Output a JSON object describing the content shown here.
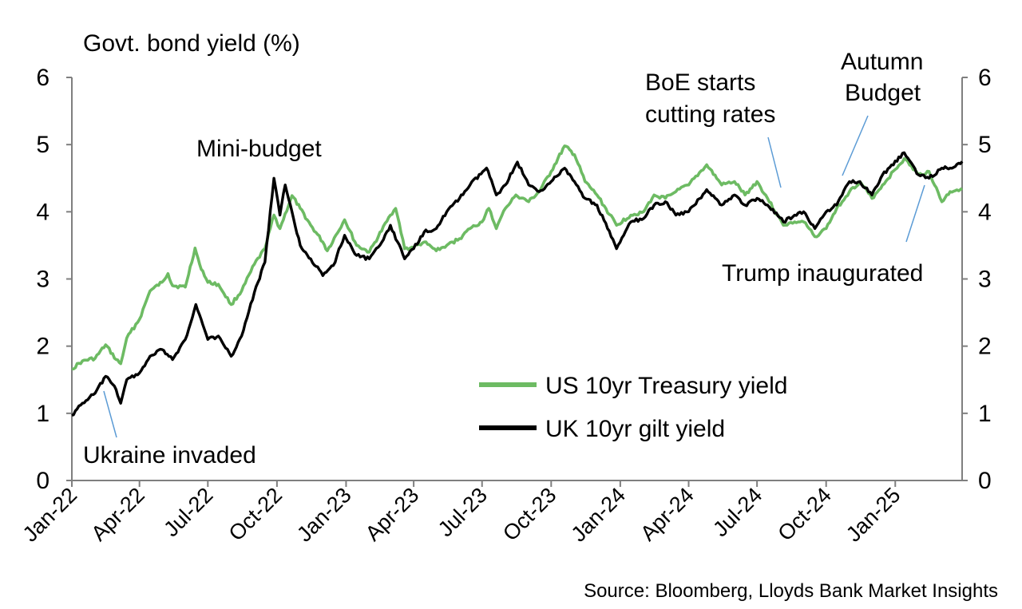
{
  "chart_data": {
    "type": "line",
    "ylabel": "Govt. bond yield (%)",
    "ylim": [
      0,
      6
    ],
    "y_ticks": [
      "0",
      "1",
      "2",
      "3",
      "4",
      "5",
      "6"
    ],
    "y2_ticks": [
      "0",
      "1",
      "2",
      "3",
      "4",
      "5",
      "6"
    ],
    "x_range": [
      "2022-01-01",
      "2025-03-31"
    ],
    "x_ticks": [
      {
        "date": "2022-01-01",
        "label": "Jan-22"
      },
      {
        "date": "2022-04-01",
        "label": "Apr-22"
      },
      {
        "date": "2022-07-01",
        "label": "Jul-22"
      },
      {
        "date": "2022-10-01",
        "label": "Oct-22"
      },
      {
        "date": "2023-01-01",
        "label": "Jan-23"
      },
      {
        "date": "2023-04-01",
        "label": "Apr-23"
      },
      {
        "date": "2023-07-01",
        "label": "Jul-23"
      },
      {
        "date": "2023-10-01",
        "label": "Oct-23"
      },
      {
        "date": "2024-01-01",
        "label": "Jan-24"
      },
      {
        "date": "2024-04-01",
        "label": "Apr-24"
      },
      {
        "date": "2024-07-01",
        "label": "Jul-24"
      },
      {
        "date": "2024-10-01",
        "label": "Oct-24"
      },
      {
        "date": "2025-01-01",
        "label": "Jan-25"
      }
    ],
    "grid": false,
    "legend_position": "center-right",
    "series": [
      {
        "name": "US 10yr Treasury yield",
        "color": "#6dbb63",
        "points": [
          [
            "2022-01-01",
            1.66
          ],
          [
            "2022-01-15",
            1.78
          ],
          [
            "2022-02-01",
            1.82
          ],
          [
            "2022-02-15",
            2.02
          ],
          [
            "2022-03-01",
            1.8
          ],
          [
            "2022-03-07",
            1.74
          ],
          [
            "2022-03-15",
            2.12
          ],
          [
            "2022-04-01",
            2.4
          ],
          [
            "2022-04-15",
            2.82
          ],
          [
            "2022-05-01",
            2.95
          ],
          [
            "2022-05-09",
            3.08
          ],
          [
            "2022-05-15",
            2.9
          ],
          [
            "2022-06-01",
            2.88
          ],
          [
            "2022-06-14",
            3.46
          ],
          [
            "2022-06-20",
            3.22
          ],
          [
            "2022-07-01",
            2.95
          ],
          [
            "2022-07-15",
            2.92
          ],
          [
            "2022-08-01",
            2.62
          ],
          [
            "2022-08-15",
            2.82
          ],
          [
            "2022-09-01",
            3.22
          ],
          [
            "2022-09-15",
            3.45
          ],
          [
            "2022-09-27",
            3.95
          ],
          [
            "2022-10-05",
            3.75
          ],
          [
            "2022-10-21",
            4.24
          ],
          [
            "2022-11-01",
            4.05
          ],
          [
            "2022-11-15",
            3.8
          ],
          [
            "2022-12-01",
            3.55
          ],
          [
            "2022-12-07",
            3.42
          ],
          [
            "2022-12-30",
            3.88
          ],
          [
            "2023-01-15",
            3.5
          ],
          [
            "2023-02-01",
            3.4
          ],
          [
            "2023-03-01",
            3.95
          ],
          [
            "2023-03-08",
            4.05
          ],
          [
            "2023-03-20",
            3.45
          ],
          [
            "2023-04-01",
            3.47
          ],
          [
            "2023-04-15",
            3.55
          ],
          [
            "2023-05-01",
            3.42
          ],
          [
            "2023-05-15",
            3.5
          ],
          [
            "2023-06-01",
            3.6
          ],
          [
            "2023-06-15",
            3.75
          ],
          [
            "2023-07-01",
            3.85
          ],
          [
            "2023-07-10",
            4.05
          ],
          [
            "2023-07-20",
            3.75
          ],
          [
            "2023-08-01",
            4.05
          ],
          [
            "2023-08-15",
            4.25
          ],
          [
            "2023-09-01",
            4.15
          ],
          [
            "2023-09-15",
            4.3
          ],
          [
            "2023-10-01",
            4.6
          ],
          [
            "2023-10-19",
            4.98
          ],
          [
            "2023-11-01",
            4.85
          ],
          [
            "2023-11-15",
            4.45
          ],
          [
            "2023-12-01",
            4.25
          ],
          [
            "2023-12-27",
            3.8
          ],
          [
            "2024-01-15",
            3.95
          ],
          [
            "2024-02-01",
            4.0
          ],
          [
            "2024-02-15",
            4.25
          ],
          [
            "2024-03-01",
            4.2
          ],
          [
            "2024-03-15",
            4.3
          ],
          [
            "2024-04-01",
            4.4
          ],
          [
            "2024-04-25",
            4.7
          ],
          [
            "2024-05-15",
            4.4
          ],
          [
            "2024-06-01",
            4.45
          ],
          [
            "2024-06-15",
            4.25
          ],
          [
            "2024-07-01",
            4.45
          ],
          [
            "2024-07-15",
            4.2
          ],
          [
            "2024-08-05",
            3.8
          ],
          [
            "2024-08-20",
            3.85
          ],
          [
            "2024-09-01",
            3.85
          ],
          [
            "2024-09-16",
            3.63
          ],
          [
            "2024-10-01",
            3.75
          ],
          [
            "2024-10-15",
            4.05
          ],
          [
            "2024-11-01",
            4.3
          ],
          [
            "2024-11-15",
            4.45
          ],
          [
            "2024-12-01",
            4.2
          ],
          [
            "2024-12-15",
            4.4
          ],
          [
            "2025-01-13",
            4.79
          ],
          [
            "2025-02-01",
            4.55
          ],
          [
            "2025-02-15",
            4.6
          ],
          [
            "2025-03-04",
            4.15
          ],
          [
            "2025-03-15",
            4.3
          ],
          [
            "2025-03-31",
            4.35
          ]
        ]
      },
      {
        "name": "UK 10yr gilt yield",
        "color": "#000000",
        "points": [
          [
            "2022-01-01",
            0.97
          ],
          [
            "2022-01-15",
            1.15
          ],
          [
            "2022-02-01",
            1.3
          ],
          [
            "2022-02-15",
            1.55
          ],
          [
            "2022-03-01",
            1.35
          ],
          [
            "2022-03-07",
            1.15
          ],
          [
            "2022-03-15",
            1.5
          ],
          [
            "2022-04-01",
            1.6
          ],
          [
            "2022-04-15",
            1.85
          ],
          [
            "2022-05-01",
            1.95
          ],
          [
            "2022-05-15",
            1.8
          ],
          [
            "2022-06-01",
            2.1
          ],
          [
            "2022-06-15",
            2.62
          ],
          [
            "2022-07-01",
            2.1
          ],
          [
            "2022-07-15",
            2.15
          ],
          [
            "2022-08-01",
            1.85
          ],
          [
            "2022-08-15",
            2.15
          ],
          [
            "2022-09-01",
            2.8
          ],
          [
            "2022-09-15",
            3.25
          ],
          [
            "2022-09-27",
            4.5
          ],
          [
            "2022-10-05",
            3.95
          ],
          [
            "2022-10-12",
            4.4
          ],
          [
            "2022-10-21",
            4.0
          ],
          [
            "2022-11-01",
            3.5
          ],
          [
            "2022-11-15",
            3.3
          ],
          [
            "2022-12-01",
            3.05
          ],
          [
            "2022-12-15",
            3.2
          ],
          [
            "2022-12-30",
            3.65
          ],
          [
            "2023-01-15",
            3.35
          ],
          [
            "2023-02-01",
            3.3
          ],
          [
            "2023-02-15",
            3.5
          ],
          [
            "2023-03-01",
            3.8
          ],
          [
            "2023-03-20",
            3.3
          ],
          [
            "2023-04-01",
            3.45
          ],
          [
            "2023-04-15",
            3.7
          ],
          [
            "2023-05-01",
            3.75
          ],
          [
            "2023-05-15",
            4.0
          ],
          [
            "2023-06-01",
            4.2
          ],
          [
            "2023-06-15",
            4.4
          ],
          [
            "2023-07-07",
            4.65
          ],
          [
            "2023-07-20",
            4.25
          ],
          [
            "2023-08-01",
            4.4
          ],
          [
            "2023-08-17",
            4.74
          ],
          [
            "2023-09-01",
            4.4
          ],
          [
            "2023-09-15",
            4.3
          ],
          [
            "2023-10-01",
            4.45
          ],
          [
            "2023-10-19",
            4.65
          ],
          [
            "2023-11-01",
            4.45
          ],
          [
            "2023-11-15",
            4.2
          ],
          [
            "2023-12-01",
            4.1
          ],
          [
            "2023-12-15",
            3.75
          ],
          [
            "2023-12-27",
            3.45
          ],
          [
            "2024-01-15",
            3.85
          ],
          [
            "2024-02-01",
            3.9
          ],
          [
            "2024-02-15",
            4.1
          ],
          [
            "2024-03-01",
            4.15
          ],
          [
            "2024-03-15",
            3.95
          ],
          [
            "2024-04-01",
            4.0
          ],
          [
            "2024-04-25",
            4.33
          ],
          [
            "2024-05-15",
            4.1
          ],
          [
            "2024-06-01",
            4.25
          ],
          [
            "2024-06-15",
            4.1
          ],
          [
            "2024-07-01",
            4.2
          ],
          [
            "2024-07-15",
            4.1
          ],
          [
            "2024-08-05",
            3.85
          ],
          [
            "2024-08-20",
            3.95
          ],
          [
            "2024-09-01",
            4.0
          ],
          [
            "2024-09-16",
            3.75
          ],
          [
            "2024-10-01",
            4.0
          ],
          [
            "2024-10-15",
            4.1
          ],
          [
            "2024-11-01",
            4.45
          ],
          [
            "2024-11-15",
            4.45
          ],
          [
            "2024-12-01",
            4.25
          ],
          [
            "2024-12-15",
            4.55
          ],
          [
            "2025-01-13",
            4.88
          ],
          [
            "2025-02-01",
            4.55
          ],
          [
            "2025-02-15",
            4.5
          ],
          [
            "2025-03-04",
            4.65
          ],
          [
            "2025-03-15",
            4.65
          ],
          [
            "2025-03-31",
            4.75
          ]
        ]
      }
    ],
    "annotations": [
      {
        "id": "ukraine",
        "lines": [
          "Ukraine invaded"
        ]
      },
      {
        "id": "mini-budget",
        "lines": [
          "Mini-budget"
        ]
      },
      {
        "id": "boe",
        "lines": [
          "BoE starts",
          "cutting rates"
        ]
      },
      {
        "id": "autumn",
        "lines": [
          "Autumn",
          "Budget"
        ]
      },
      {
        "id": "trump",
        "lines": [
          "Trump inaugurated"
        ]
      }
    ]
  },
  "source": "Source: Bloomberg, Lloyds Bank Market Insights"
}
